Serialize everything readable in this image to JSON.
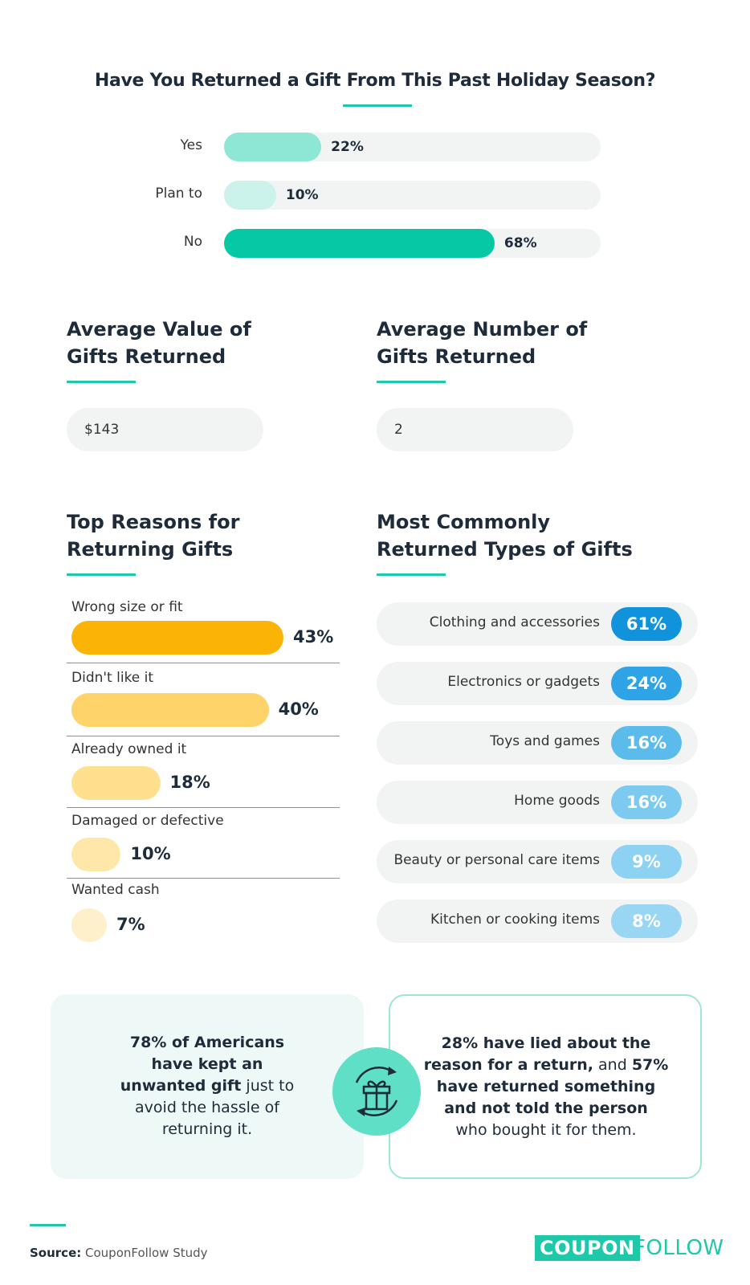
{
  "question": {
    "title": "Have You Returned a Gift From This Past Holiday Season?",
    "answers": [
      {
        "label": "Yes",
        "value_label": "22%",
        "value": 22,
        "color": "#8ee7d4"
      },
      {
        "label": "Plan to",
        "value_label": "10%",
        "value": 10,
        "color": "#ccf3eb"
      },
      {
        "label": "No",
        "value_label": "68%",
        "value": 68,
        "color": "#05c9a5"
      }
    ]
  },
  "stats": {
    "avg_value": {
      "title_line1": "Average Value of",
      "title_line2": "Gifts Returned",
      "value": "$143"
    },
    "avg_number": {
      "title_line1": "Average Number of",
      "title_line2": "Gifts Returned",
      "value": "2"
    }
  },
  "reasons": {
    "title_line1": "Top Reasons for",
    "title_line2": "Returning Gifts",
    "items": [
      {
        "label": "Wrong size or fit",
        "value_label": "43%",
        "value": 43,
        "color": "#fbb305"
      },
      {
        "label": "Didn't like it",
        "value_label": "40%",
        "value": 40,
        "color": "#fdd36a"
      },
      {
        "label": "Already owned it",
        "value_label": "18%",
        "value": 18,
        "color": "#fee08e"
      },
      {
        "label": "Damaged or defective",
        "value_label": "10%",
        "value": 10,
        "color": "#fee7a9"
      },
      {
        "label": "Wanted cash",
        "value_label": "7%",
        "value": 7,
        "color": "#fff0cc"
      }
    ]
  },
  "gift_types": {
    "title_line1": "Most Commonly",
    "title_line2": "Returned Types of Gifts",
    "items": [
      {
        "label": "Clothing and accessories",
        "value_label": "61%",
        "value": 61,
        "color": "#1193dc"
      },
      {
        "label": "Electronics or gadgets",
        "value_label": "24%",
        "value": 24,
        "color": "#2ea3e5"
      },
      {
        "label": "Toys and games",
        "value_label": "16%",
        "value": 16,
        "color": "#5bbcec"
      },
      {
        "label": "Home goods",
        "value_label": "16%",
        "value": 16,
        "color": "#7ccaf0"
      },
      {
        "label": "Beauty or personal care items",
        "value_label": "9%",
        "value": 9,
        "color": "#8dd2f2"
      },
      {
        "label": "Kitchen or cooking items",
        "value_label": "8%",
        "value": 8,
        "color": "#98d6f3"
      }
    ]
  },
  "callouts": {
    "left": {
      "l1_bold": "78% of Americans",
      "l2_bold": "have kept an",
      "l3_bold": "unwanted gift",
      "l3_rest": " just to",
      "l4": "avoid the hassle of",
      "l5": "returning it."
    },
    "right": {
      "l1_bold": "28% have lied about the",
      "l2_bold_a": "reason for a return,",
      "l2_mid": " and ",
      "l2_bold_b": "57%",
      "l3_bold": "have returned something",
      "l4_bold": "and not told the person",
      "l5": "who bought it for them."
    }
  },
  "footer": {
    "source_label": "Source:",
    "source_text": " CouponFollow Study",
    "logo_coupon": "COUPON",
    "logo_follow": "FOLLOW"
  },
  "chart_data": [
    {
      "type": "bar",
      "title": "Have You Returned a Gift From This Past Holiday Season?",
      "categories": [
        "Yes",
        "Plan to",
        "No"
      ],
      "values": [
        22,
        10,
        68
      ],
      "ylim": [
        0,
        100
      ]
    },
    {
      "type": "bar",
      "title": "Top Reasons for Returning Gifts",
      "categories": [
        "Wrong size or fit",
        "Didn't like it",
        "Already owned it",
        "Damaged or defective",
        "Wanted cash"
      ],
      "values": [
        43,
        40,
        18,
        10,
        7
      ]
    },
    {
      "type": "table",
      "title": "Most Commonly Returned Types of Gifts",
      "categories": [
        "Clothing and accessories",
        "Electronics or gadgets",
        "Toys and games",
        "Home goods",
        "Beauty or personal care items",
        "Kitchen or cooking items"
      ],
      "values": [
        61,
        24,
        16,
        16,
        9,
        8
      ]
    }
  ]
}
